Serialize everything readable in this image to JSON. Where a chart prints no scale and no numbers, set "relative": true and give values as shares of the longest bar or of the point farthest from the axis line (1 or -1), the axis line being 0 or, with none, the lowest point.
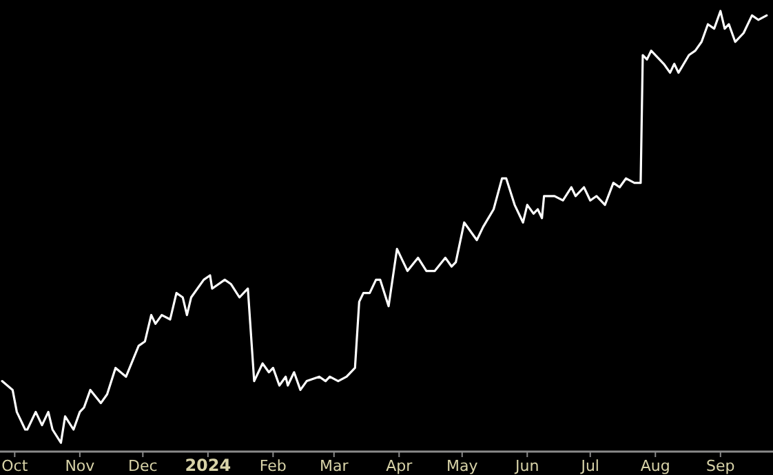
{
  "chart_data": {
    "type": "line",
    "relative": true,
    "grid": false,
    "marker": "none",
    "line_style": "solid",
    "xlim": [
      "2023-09-24",
      "2024-09-26"
    ],
    "xticks": [
      {
        "value": "2023-10-01",
        "label": "Oct"
      },
      {
        "value": "2023-11-01",
        "label": "Nov"
      },
      {
        "value": "2023-12-01",
        "label": "Dec"
      },
      {
        "value": "2024-01-01",
        "label": "2024"
      },
      {
        "value": "2024-02-01",
        "label": "Feb"
      },
      {
        "value": "2024-03-01",
        "label": "Mar"
      },
      {
        "value": "2024-04-01",
        "label": "Apr"
      },
      {
        "value": "2024-05-01",
        "label": "May"
      },
      {
        "value": "2024-06-01",
        "label": "Jun"
      },
      {
        "value": "2024-07-01",
        "label": "Jul"
      },
      {
        "value": "2024-08-01",
        "label": "Aug"
      },
      {
        "value": "2024-09-01",
        "label": "Sep"
      }
    ],
    "series": [
      {
        "color": "#ffffff",
        "x": [
          "2023-09-25",
          "2023-09-30",
          "2023-10-02",
          "2023-10-06",
          "2023-10-07",
          "2023-10-11",
          "2023-10-14",
          "2023-10-17",
          "2023-10-19",
          "2023-10-23",
          "2023-10-25",
          "2023-10-29",
          "2023-11-01",
          "2023-11-03",
          "2023-11-06",
          "2023-11-11",
          "2023-11-14",
          "2023-11-18",
          "2023-11-23",
          "2023-11-29",
          "2023-12-02",
          "2023-12-05",
          "2023-12-07",
          "2023-12-10",
          "2023-12-14",
          "2023-12-17",
          "2023-12-20",
          "2023-12-22",
          "2023-12-24",
          "2023-12-30",
          "2024-01-02",
          "2024-01-03",
          "2024-01-09",
          "2024-01-12",
          "2024-01-16",
          "2024-01-20",
          "2024-01-23",
          "2024-01-27",
          "2024-01-30",
          "2024-02-01",
          "2024-02-04",
          "2024-02-07",
          "2024-02-08",
          "2024-02-11",
          "2024-02-14",
          "2024-02-17",
          "2024-02-23",
          "2024-02-26",
          "2024-02-28",
          "2024-03-03",
          "2024-03-07",
          "2024-03-11",
          "2024-03-13",
          "2024-03-15",
          "2024-03-18",
          "2024-03-21",
          "2024-03-23",
          "2024-03-27",
          "2024-03-31",
          "2024-04-05",
          "2024-04-10",
          "2024-04-14",
          "2024-04-18",
          "2024-04-23",
          "2024-04-26",
          "2024-04-28",
          "2024-05-02",
          "2024-05-08",
          "2024-05-11",
          "2024-05-16",
          "2024-05-20",
          "2024-05-22",
          "2024-05-26",
          "2024-05-30",
          "2024-06-01",
          "2024-06-04",
          "2024-06-06",
          "2024-06-08",
          "2024-06-09",
          "2024-06-14",
          "2024-06-18",
          "2024-06-22",
          "2024-06-24",
          "2024-06-28",
          "2024-07-01",
          "2024-07-04",
          "2024-07-08",
          "2024-07-12",
          "2024-07-15",
          "2024-07-18",
          "2024-07-22",
          "2024-07-25",
          "2024-07-26",
          "2024-07-28",
          "2024-07-30",
          "2024-08-05",
          "2024-08-08",
          "2024-08-10",
          "2024-08-12",
          "2024-08-17",
          "2024-08-20",
          "2024-08-23",
          "2024-08-26",
          "2024-08-29",
          "2024-09-01",
          "2024-09-03",
          "2024-09-05",
          "2024-09-08",
          "2024-09-12",
          "2024-09-16",
          "2024-09-19",
          "2024-09-23"
        ],
        "values": [
          0.16,
          0.14,
          0.09,
          0.05,
          0.05,
          0.09,
          0.06,
          0.09,
          0.05,
          0.02,
          0.08,
          0.05,
          0.09,
          0.1,
          0.14,
          0.11,
          0.13,
          0.19,
          0.17,
          0.24,
          0.25,
          0.31,
          0.29,
          0.31,
          0.3,
          0.36,
          0.35,
          0.31,
          0.35,
          0.39,
          0.4,
          0.37,
          0.39,
          0.38,
          0.35,
          0.37,
          0.16,
          0.2,
          0.18,
          0.19,
          0.15,
          0.17,
          0.15,
          0.18,
          0.14,
          0.16,
          0.17,
          0.16,
          0.17,
          0.16,
          0.17,
          0.19,
          0.34,
          0.36,
          0.36,
          0.39,
          0.39,
          0.33,
          0.46,
          0.41,
          0.44,
          0.41,
          0.41,
          0.44,
          0.42,
          0.43,
          0.52,
          0.48,
          0.51,
          0.55,
          0.62,
          0.62,
          0.56,
          0.52,
          0.56,
          0.54,
          0.55,
          0.53,
          0.58,
          0.58,
          0.57,
          0.6,
          0.58,
          0.6,
          0.57,
          0.58,
          0.56,
          0.61,
          0.6,
          0.62,
          0.61,
          0.61,
          0.9,
          0.89,
          0.91,
          0.88,
          0.86,
          0.88,
          0.86,
          0.9,
          0.91,
          0.93,
          0.97,
          0.96,
          1,
          0.96,
          0.97,
          0.93,
          0.95,
          0.99,
          0.98,
          0.99
        ]
      }
    ]
  }
}
